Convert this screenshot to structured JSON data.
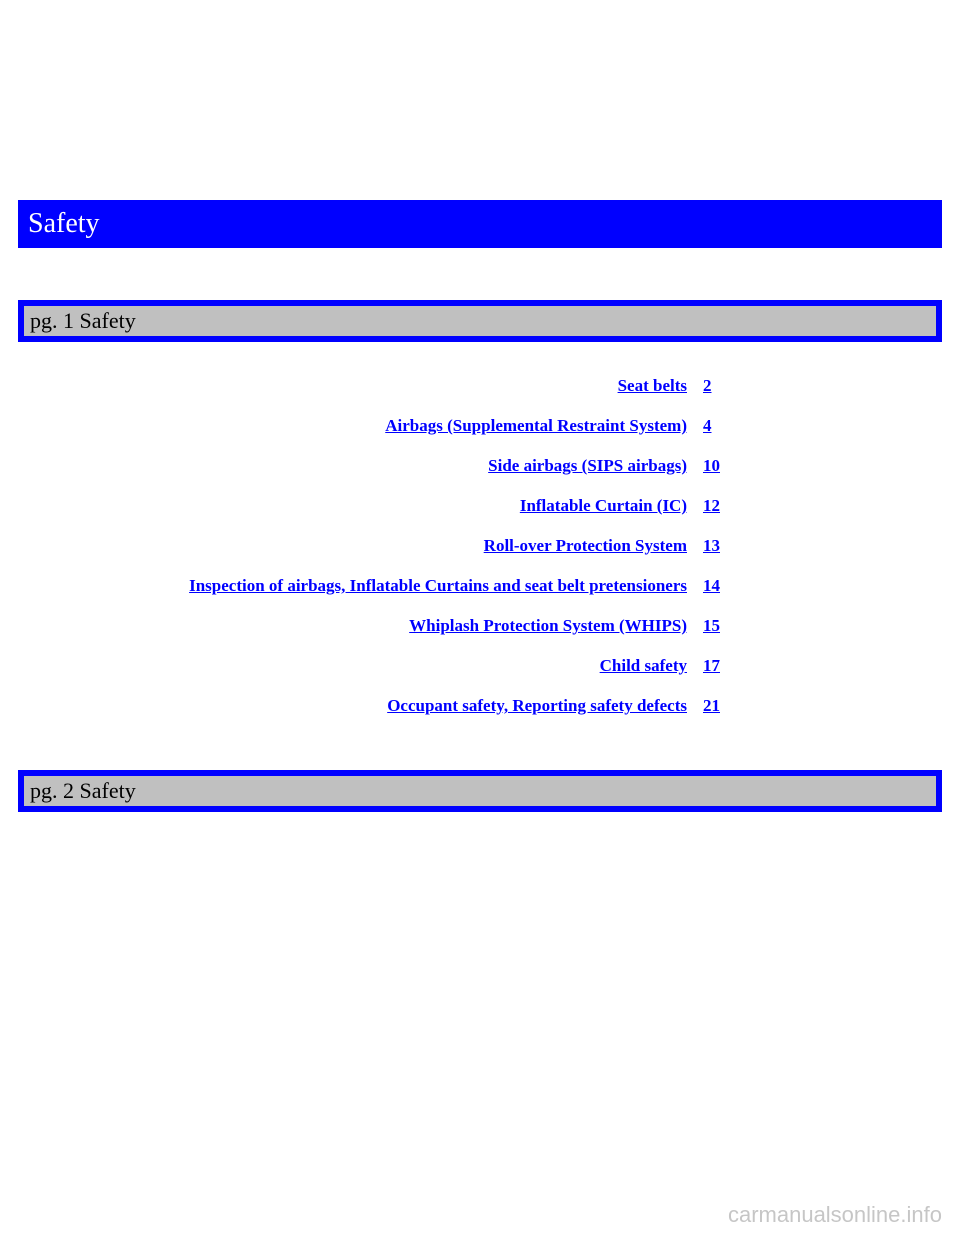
{
  "title_bar": {
    "text": "Safety",
    "background_color": "#0000ff",
    "text_color": "#ffffff",
    "border_color": "#0000ff"
  },
  "sub_bars": {
    "border_color": "#0000ff",
    "background_color": "#c0c0c0",
    "text_color": "#000000",
    "bar1": "pg. 1 Safety",
    "bar2": "pg. 2 Safety"
  },
  "toc": {
    "link_color": "#0000ff",
    "font_weight": "bold",
    "items": [
      {
        "label": "Seat belts",
        "page": "2"
      },
      {
        "label": "Airbags (Supplemental Restraint System)",
        "page": "4"
      },
      {
        "label": "Side airbags (SIPS airbags)",
        "page": "10"
      },
      {
        "label": "Inflatable Curtain (IC)",
        "page": "12"
      },
      {
        "label": "Roll-over Protection System",
        "page": "13"
      },
      {
        "label": "Inspection of airbags, Inflatable Curtains and seat belt pretensioners",
        "page": "14"
      },
      {
        "label": "Whiplash Protection System (WHIPS)",
        "page": "15"
      },
      {
        "label": "Child safety",
        "page": "17"
      },
      {
        "label": "Occupant safety, Reporting safety defects",
        "page": "21"
      }
    ]
  },
  "watermark": {
    "text": "carmanualsonline.info",
    "color": "#b8b8b8"
  }
}
